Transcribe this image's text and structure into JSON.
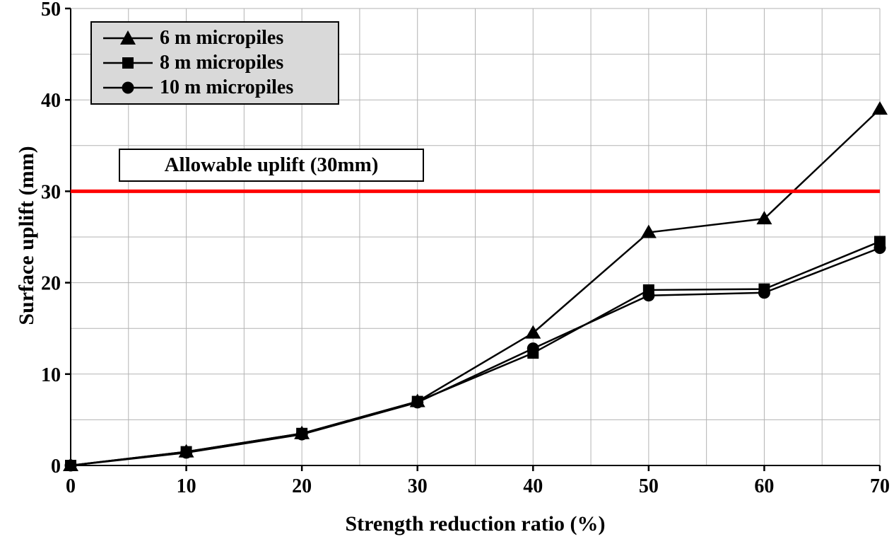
{
  "chart_data": {
    "type": "line",
    "title": "",
    "xlabel": "Strength reduction ratio (%)",
    "ylabel": "Surface uplift (mm)",
    "xlim": [
      0,
      70
    ],
    "ylim": [
      0,
      50
    ],
    "x_ticks": [
      0,
      10,
      20,
      30,
      40,
      50,
      60,
      70
    ],
    "y_ticks": [
      0,
      10,
      20,
      30,
      40,
      50
    ],
    "grid": {
      "x_step": 5,
      "y_step": 5,
      "color": "#b3b3b3"
    },
    "x": [
      0,
      10,
      20,
      30,
      40,
      50,
      60,
      70
    ],
    "series": [
      {
        "name": "6 m micropiles",
        "marker": "triangle",
        "color": "#000000",
        "values": [
          0,
          1.5,
          3.5,
          7.0,
          14.5,
          25.5,
          27.0,
          39.0
        ]
      },
      {
        "name": "8 m micropiles",
        "marker": "square",
        "color": "#000000",
        "values": [
          0,
          1.5,
          3.5,
          7.0,
          12.3,
          19.2,
          19.3,
          24.5
        ]
      },
      {
        "name": "10 m micropiles",
        "marker": "circle",
        "color": "#000000",
        "values": [
          0,
          1.4,
          3.4,
          6.9,
          12.8,
          18.6,
          18.9,
          23.8
        ]
      }
    ],
    "annotation": {
      "text": "Allowable uplift (30mm)",
      "value": 30,
      "color": "#ff0000"
    },
    "legend": {
      "position": "top-left",
      "background": "#d9d9d9"
    }
  }
}
